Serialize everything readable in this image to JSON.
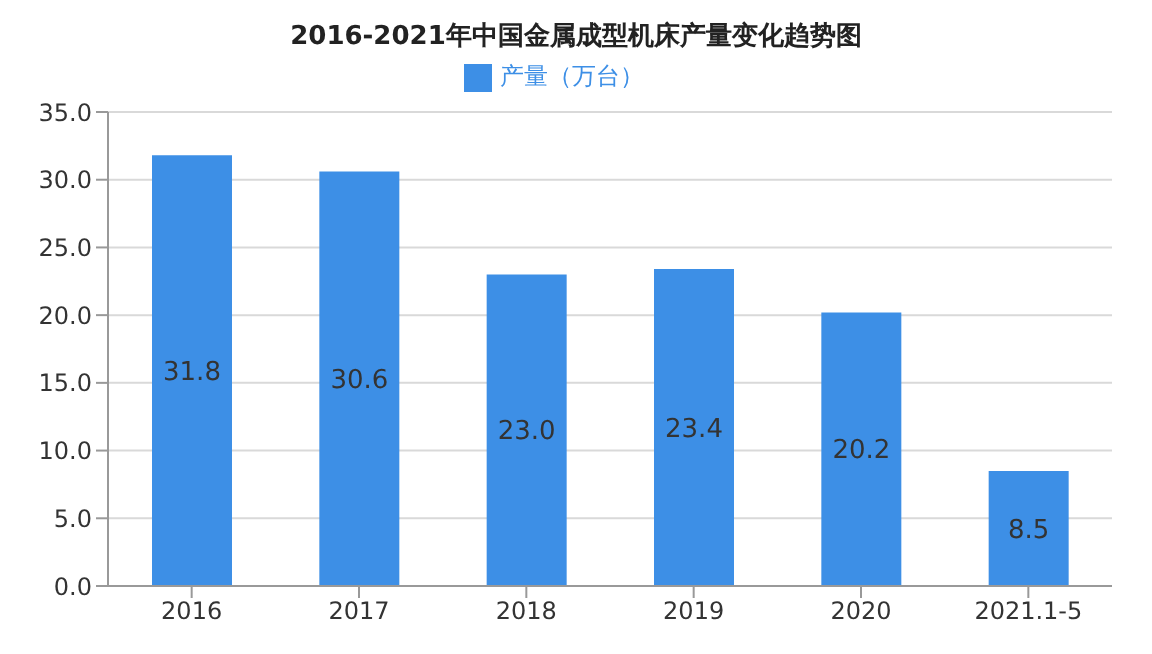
{
  "chart_data": {
    "type": "bar",
    "title": "2016-2021年中国金属成型机床产量变化趋势图",
    "categories": [
      "2016",
      "2017",
      "2018",
      "2019",
      "2020",
      "2021.1-5"
    ],
    "series": [
      {
        "name": "产量（万台）",
        "color": "#3d8fe6",
        "values": [
          31.8,
          30.6,
          23.0,
          23.4,
          20.2,
          8.5
        ],
        "value_labels": [
          "31.8",
          "30.6",
          "23.0",
          "23.4",
          "20.2",
          "8.5"
        ]
      }
    ],
    "ylim": [
      0,
      35
    ],
    "yticks": [
      {
        "value": 0,
        "label": "0.0"
      },
      {
        "value": 5,
        "label": "5.0"
      },
      {
        "value": 10,
        "label": "10.0"
      },
      {
        "value": 15,
        "label": "15.0"
      },
      {
        "value": 20,
        "label": "20.0"
      },
      {
        "value": 25,
        "label": "25.0"
      },
      {
        "value": 30,
        "label": "30.0"
      },
      {
        "value": 35,
        "label": "35.0"
      }
    ],
    "grid": "y",
    "legend": "top"
  }
}
